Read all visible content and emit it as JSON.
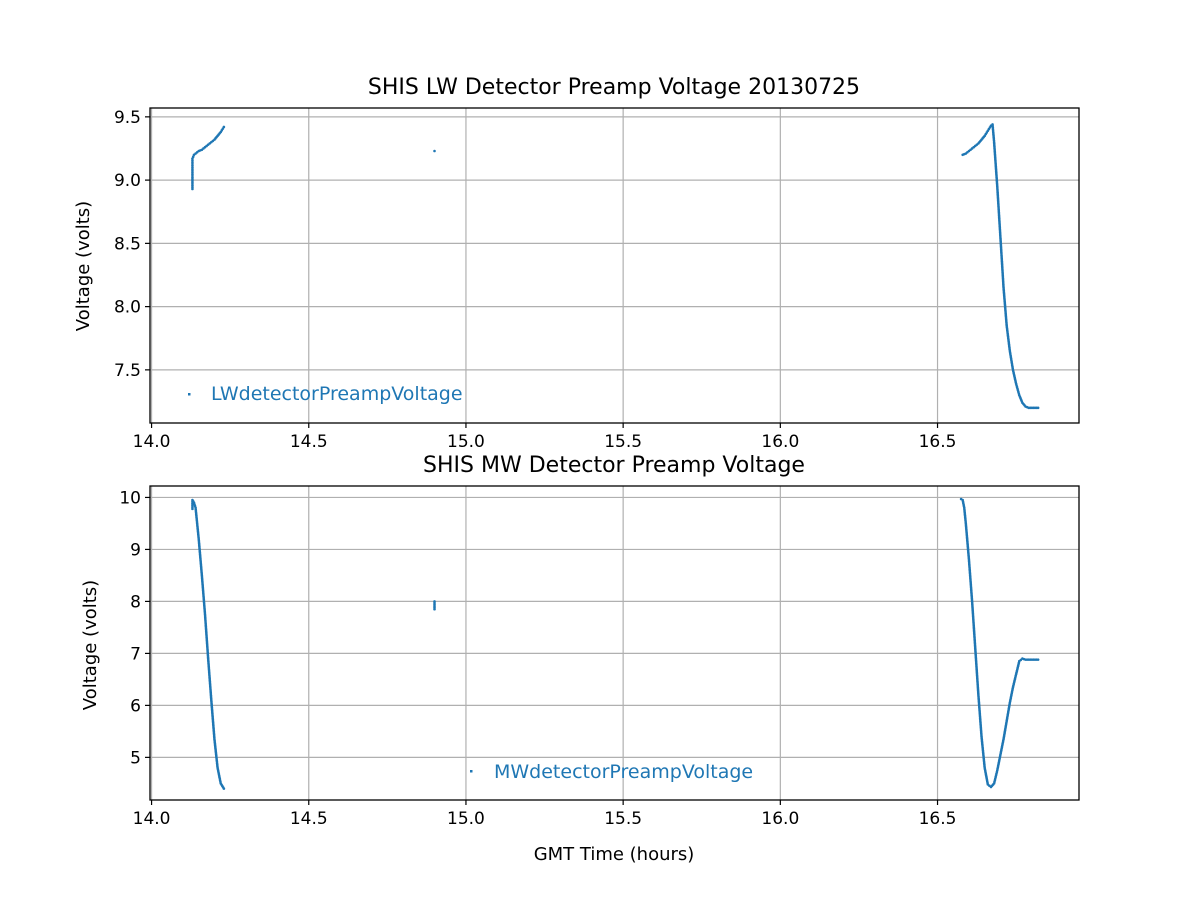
{
  "chart_data": [
    {
      "type": "scatter",
      "title": "SHIS LW Detector Preamp Voltage 20130725",
      "xlabel": "",
      "ylabel": "Voltage (volts)",
      "xlim": [
        13.995,
        16.95
      ],
      "ylim": [
        7.08,
        9.57
      ],
      "xticks": [
        14.0,
        14.5,
        15.0,
        15.5,
        16.0,
        16.5
      ],
      "xtick_labels": [
        "14.0",
        "14.5",
        "15.0",
        "15.5",
        "16.0",
        "16.5"
      ],
      "yticks": [
        7.5,
        8.0,
        8.5,
        9.0,
        9.5
      ],
      "ytick_labels": [
        "7.5",
        "8.0",
        "8.5",
        "9.0",
        "9.5"
      ],
      "grid": true,
      "legend_position": "lower-left",
      "color": "#1f77b4",
      "series": [
        {
          "name": "LWdetectorPreampVoltage",
          "x": [
            14.13,
            14.13,
            14.13,
            14.13,
            14.13,
            14.13,
            14.135,
            14.14,
            14.15,
            14.16,
            14.17,
            14.18,
            14.19,
            14.2,
            14.21,
            14.22,
            14.23,
            14.9,
            16.58,
            16.59,
            16.6,
            16.61,
            16.62,
            16.63,
            16.64,
            16.65,
            16.66,
            16.67,
            16.675,
            16.68,
            16.69,
            16.7,
            16.71,
            16.72,
            16.73,
            16.74,
            16.75,
            16.76,
            16.77,
            16.78,
            16.79,
            16.8,
            16.81,
            16.82
          ],
          "y": [
            8.93,
            8.97,
            9.02,
            9.06,
            9.1,
            9.17,
            9.2,
            9.21,
            9.23,
            9.24,
            9.26,
            9.28,
            9.3,
            9.32,
            9.35,
            9.38,
            9.42,
            9.23,
            9.2,
            9.21,
            9.23,
            9.25,
            9.27,
            9.29,
            9.32,
            9.35,
            9.39,
            9.43,
            9.44,
            9.3,
            8.95,
            8.55,
            8.15,
            7.85,
            7.65,
            7.5,
            7.39,
            7.3,
            7.24,
            7.21,
            7.2,
            7.2,
            7.2,
            7.2
          ]
        }
      ]
    },
    {
      "type": "scatter",
      "title": "SHIS MW Detector Preamp Voltage",
      "xlabel": "GMT Time (hours)",
      "ylabel": "Voltage (volts)",
      "xlim": [
        13.995,
        16.95
      ],
      "ylim": [
        4.18,
        10.22
      ],
      "xticks": [
        14.0,
        14.5,
        15.0,
        15.5,
        16.0,
        16.5
      ],
      "xtick_labels": [
        "14.0",
        "14.5",
        "15.0",
        "15.5",
        "16.0",
        "16.5"
      ],
      "yticks": [
        5,
        6,
        7,
        8,
        9,
        10
      ],
      "ytick_labels": [
        "5",
        "6",
        "7",
        "8",
        "9",
        "10"
      ],
      "grid": true,
      "legend_position": "lower-center",
      "color": "#1f77b4",
      "series": [
        {
          "name": "MWdetectorPreampVoltage",
          "x": [
            14.13,
            14.13,
            14.135,
            14.14,
            14.145,
            14.15,
            14.16,
            14.17,
            14.18,
            14.19,
            14.2,
            14.21,
            14.22,
            14.23,
            14.9,
            14.9,
            16.575,
            16.58,
            16.585,
            16.59,
            16.6,
            16.61,
            16.62,
            16.63,
            16.64,
            16.65,
            16.66,
            16.67,
            16.68,
            16.69,
            16.7,
            16.71,
            16.72,
            16.73,
            16.74,
            16.75,
            16.76,
            16.77,
            16.78,
            16.79,
            16.8,
            16.81,
            16.82
          ],
          "y": [
            9.78,
            9.95,
            9.9,
            9.8,
            9.5,
            9.2,
            8.5,
            7.75,
            6.9,
            6.1,
            5.35,
            4.8,
            4.5,
            4.4,
            7.85,
            8.0,
            9.97,
            9.95,
            9.8,
            9.5,
            8.8,
            8.0,
            7.1,
            6.2,
            5.4,
            4.8,
            4.48,
            4.43,
            4.5,
            4.75,
            5.05,
            5.35,
            5.7,
            6.05,
            6.35,
            6.6,
            6.85,
            6.9,
            6.88,
            6.88,
            6.88,
            6.88,
            6.88
          ]
        }
      ]
    }
  ]
}
